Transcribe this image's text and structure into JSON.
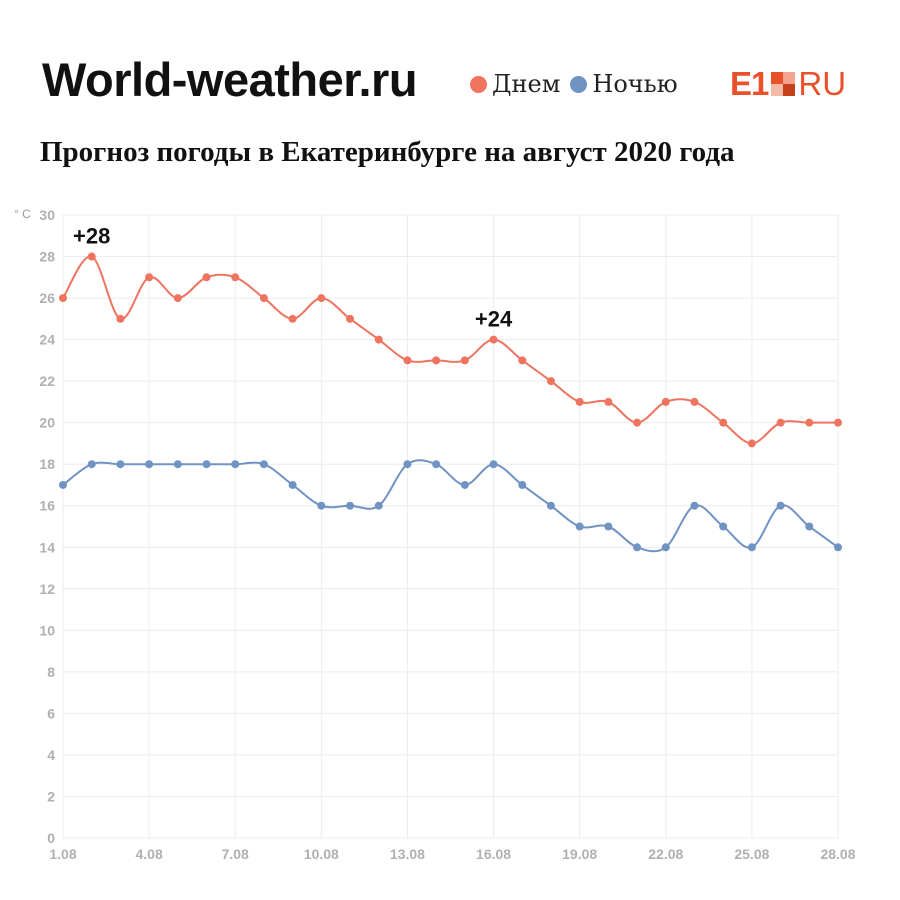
{
  "header": {
    "site": "World-weather.ru",
    "brand": {
      "e1": "E1",
      "ru": "RU",
      "color": "#e8512a"
    }
  },
  "legend": [
    {
      "label": "Днем",
      "color": "#ef7460"
    },
    {
      "label": "Ночью",
      "color": "#7093c4"
    }
  ],
  "chart_data": {
    "type": "line",
    "title": "Прогноз погоды в Екатеринбурге на август 2020 года",
    "ylabel": "° C",
    "xlabel": "",
    "ylim": [
      0,
      30
    ],
    "yticks": [
      0,
      2,
      4,
      6,
      8,
      10,
      12,
      14,
      16,
      18,
      20,
      22,
      24,
      26,
      28,
      30
    ],
    "x": [
      "1.08",
      "2.08",
      "3.08",
      "4.08",
      "5.08",
      "6.08",
      "7.08",
      "8.08",
      "9.08",
      "10.08",
      "11.08",
      "12.08",
      "13.08",
      "14.08",
      "15.08",
      "16.08",
      "17.08",
      "18.08",
      "19.08",
      "20.08",
      "21.08",
      "22.08",
      "23.08",
      "24.08",
      "25.08",
      "26.08",
      "27.08",
      "28.08"
    ],
    "xtick_labels": [
      "1.08",
      "4.08",
      "7.08",
      "10.08",
      "13.08",
      "16.08",
      "19.08",
      "22.08",
      "25.08",
      "28.08"
    ],
    "grid": true,
    "series": [
      {
        "name": "Днем",
        "color": "#ef7460",
        "values": [
          26,
          28,
          25,
          27,
          26,
          27,
          27,
          26,
          25,
          26,
          25,
          24,
          23,
          23,
          23,
          24,
          23,
          22,
          21,
          21,
          20,
          21,
          21,
          20,
          19,
          20,
          20,
          20
        ]
      },
      {
        "name": "Ночью",
        "color": "#7093c4",
        "values": [
          17,
          18,
          18,
          18,
          18,
          18,
          18,
          18,
          17,
          16,
          16,
          16,
          18,
          18,
          17,
          18,
          17,
          16,
          15,
          15,
          14,
          14,
          16,
          15,
          14,
          16,
          15,
          14
        ]
      }
    ],
    "annotations": [
      {
        "text": "+28",
        "x": "2.08",
        "y": 28
      },
      {
        "text": "+24",
        "x": "16.08",
        "y": 24
      }
    ]
  }
}
